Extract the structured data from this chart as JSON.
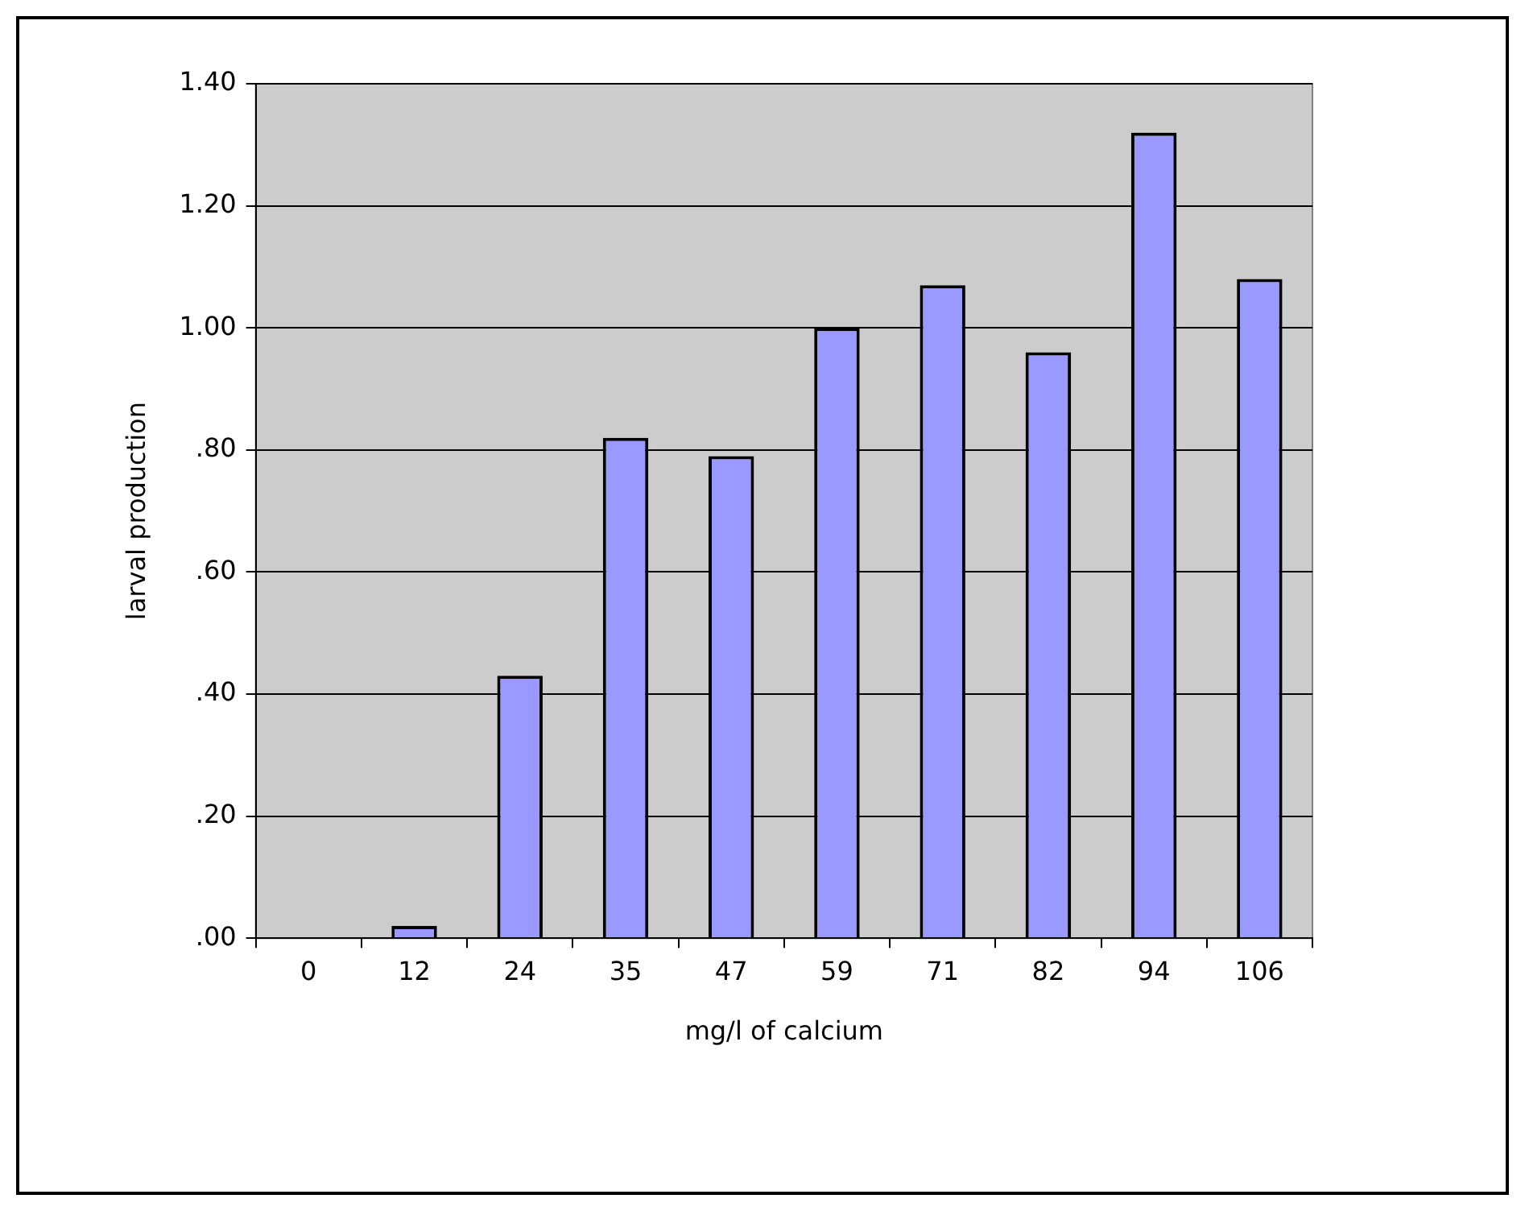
{
  "chart_data": {
    "type": "bar",
    "xlabel": "mg/l of calcium",
    "ylabel": "larval production",
    "categories": [
      "0",
      "12",
      "24",
      "35",
      "47",
      "59",
      "71",
      "82",
      "94",
      "106"
    ],
    "values": [
      0,
      0.02,
      0.43,
      0.82,
      0.79,
      1.0,
      1.07,
      0.96,
      1.32,
      1.08
    ],
    "color": "#9999ff",
    "ylim": [
      0,
      1.4
    ],
    "yticks": [
      {
        "value": 0,
        "label": ".00"
      },
      {
        "value": 0.2,
        "label": ".20"
      },
      {
        "value": 0.4,
        "label": ".40"
      },
      {
        "value": 0.6,
        "label": ".60"
      },
      {
        "value": 0.8,
        "label": ".80"
      },
      {
        "value": 1.0,
        "label": "1.00"
      },
      {
        "value": 1.2,
        "label": "1.20"
      },
      {
        "value": 1.4,
        "label": "1.40"
      }
    ],
    "grid": "y",
    "legend": false
  }
}
